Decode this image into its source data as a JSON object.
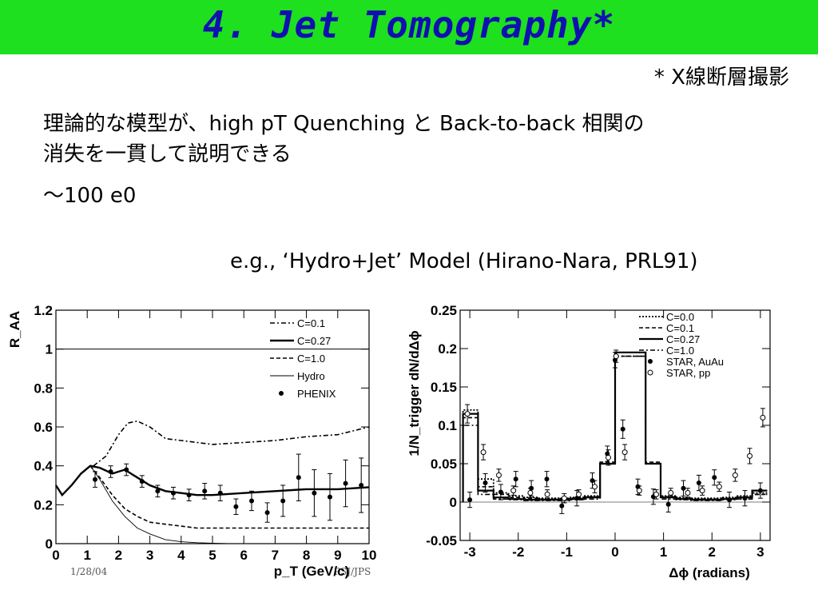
{
  "slide": {
    "title": "4. Jet Tomography*",
    "note": "* X線断層撮影",
    "line1": "理論的な模型が、high pT Quenching と Back-to-back 相関の",
    "line2": "消失を一貫して説明できる",
    "line3": "～100 e0",
    "example": "e.g., ‘Hydro+Jet’ Model (Hirano-Nara, PRL91)",
    "footer_left": "1/28/04",
    "footer_mid": "PSJ/JPS"
  },
  "chart_data": [
    {
      "type": "line",
      "ylabel": "R_AA",
      "xlabel": "p_T (GeV/c)",
      "xlim": [
        0,
        10
      ],
      "ylim": [
        0,
        1.2
      ],
      "xticks": [
        "0",
        "1",
        "2",
        "3",
        "4",
        "5",
        "6",
        "7",
        "8",
        "9",
        "10"
      ],
      "yticks": [
        "0",
        "0.2",
        "0.4",
        "0.6",
        "0.8",
        "1",
        "1.2"
      ],
      "legend_position": "top-right",
      "series": [
        {
          "name": "C=0.1",
          "style": "dashdot",
          "x": [
            1.2,
            1.6,
            2.0,
            2.3,
            2.6,
            3.0,
            3.5,
            4,
            5,
            6,
            7,
            8,
            9,
            10
          ],
          "y": [
            0.4,
            0.45,
            0.56,
            0.62,
            0.63,
            0.6,
            0.54,
            0.53,
            0.51,
            0.52,
            0.53,
            0.55,
            0.56,
            0.6
          ]
        },
        {
          "name": "C=0.27",
          "style": "solid-thick",
          "x": [
            0,
            0.2,
            0.5,
            0.8,
            1.1,
            1.4,
            1.8,
            2.2,
            2.6,
            3,
            3.5,
            4,
            4.5,
            5,
            6,
            7,
            8,
            9,
            10
          ],
          "y": [
            0.3,
            0.25,
            0.3,
            0.36,
            0.4,
            0.39,
            0.36,
            0.38,
            0.34,
            0.3,
            0.27,
            0.26,
            0.25,
            0.25,
            0.26,
            0.27,
            0.28,
            0.28,
            0.29
          ]
        },
        {
          "name": "C=1.0",
          "style": "dashed",
          "x": [
            1.1,
            1.4,
            1.8,
            2.2,
            2.6,
            3,
            3.5,
            4,
            4.5,
            5,
            6,
            7,
            8,
            9,
            10
          ],
          "y": [
            0.4,
            0.34,
            0.25,
            0.18,
            0.14,
            0.11,
            0.1,
            0.09,
            0.08,
            0.08,
            0.08,
            0.08,
            0.08,
            0.08,
            0.08
          ]
        },
        {
          "name": "Hydro",
          "style": "thin",
          "x": [
            1.1,
            1.4,
            1.8,
            2.2,
            2.6,
            3,
            3.5,
            4,
            4.5,
            5,
            5.5
          ],
          "y": [
            0.4,
            0.33,
            0.22,
            0.14,
            0.08,
            0.05,
            0.02,
            0.01,
            0.005,
            0.002,
            0.0
          ]
        },
        {
          "name": "PHENIX",
          "style": "points",
          "x": [
            1.25,
            1.75,
            2.25,
            2.75,
            3.25,
            3.75,
            4.25,
            4.75,
            5.25,
            5.75,
            6.25,
            6.75,
            7.25,
            7.75,
            8.25,
            8.75,
            9.25,
            9.75
          ],
          "y": [
            0.33,
            0.37,
            0.38,
            0.32,
            0.27,
            0.26,
            0.25,
            0.27,
            0.26,
            0.19,
            0.22,
            0.16,
            0.22,
            0.34,
            0.26,
            0.24,
            0.31,
            0.3
          ],
          "err": [
            0.04,
            0.03,
            0.03,
            0.03,
            0.03,
            0.03,
            0.03,
            0.04,
            0.04,
            0.04,
            0.05,
            0.05,
            0.08,
            0.12,
            0.12,
            0.12,
            0.12,
            0.14
          ]
        }
      ],
      "reference_line": {
        "y": 1
      }
    },
    {
      "type": "line",
      "ylabel": "1/N_trigger dN/dΔϕ",
      "xlabel": "Δϕ (radians)",
      "xlim": [
        -3.2,
        3.2
      ],
      "ylim": [
        -0.05,
        0.25
      ],
      "xticks": [
        "-3",
        "-2",
        "-1",
        "0",
        "1",
        "2",
        "3"
      ],
      "yticks": [
        "-0.05",
        "0",
        "0.05",
        "0.1",
        "0.15",
        "0.2",
        "0.25"
      ],
      "legend_position": "top-right",
      "bin_edges": [
        -3.14,
        -2.83,
        -2.51,
        -2.2,
        -1.88,
        -1.57,
        -1.26,
        -0.94,
        -0.63,
        -0.31,
        0,
        0.31,
        0.63,
        0.94,
        1.26,
        1.57,
        1.88,
        2.2,
        2.51,
        2.83,
        3.14
      ],
      "series": [
        {
          "name": "C=0.0",
          "style": "dotted",
          "values": [
            0.12,
            0.03,
            0.012,
            0.008,
            0.006,
            0.005,
            0.005,
            0.006,
            0.008,
            0.05,
            0.195,
            0.195,
            0.05,
            0.008,
            0.006,
            0.005,
            0.005,
            0.006,
            0.008,
            0.012
          ]
        },
        {
          "name": "C=0.1",
          "style": "dashed",
          "values": [
            0.11,
            0.02,
            0.01,
            0.006,
            0.005,
            0.004,
            0.004,
            0.005,
            0.007,
            0.052,
            0.19,
            0.19,
            0.052,
            0.007,
            0.005,
            0.004,
            0.004,
            0.005,
            0.006,
            0.01
          ]
        },
        {
          "name": "C=0.27",
          "style": "solid",
          "values": [
            0.115,
            0.015,
            0.006,
            0.004,
            0.003,
            0.003,
            0.003,
            0.004,
            0.006,
            0.05,
            0.195,
            0.195,
            0.05,
            0.006,
            0.004,
            0.003,
            0.003,
            0.004,
            0.006,
            0.015
          ]
        },
        {
          "name": "C=1.0",
          "style": "dashdot",
          "values": [
            0.1,
            0.01,
            0.004,
            0.003,
            0.002,
            0.002,
            0.002,
            0.003,
            0.004,
            0.05,
            0.19,
            0.19,
            0.05,
            0.004,
            0.003,
            0.002,
            0.002,
            0.003,
            0.004,
            0.01
          ]
        },
        {
          "name": "STAR, AuAu",
          "style": "filled",
          "x": [
            -3.0,
            -2.68,
            -2.36,
            -2.05,
            -1.73,
            -1.41,
            -1.1,
            -0.79,
            -0.47,
            -0.16,
            0.0,
            0.16,
            0.47,
            0.79,
            1.1,
            1.41,
            1.73,
            2.05,
            2.36,
            2.68,
            3.0
          ],
          "y": [
            0.003,
            0.025,
            0.013,
            0.03,
            0.018,
            0.03,
            -0.005,
            0.005,
            0.028,
            0.063,
            0.185,
            0.095,
            0.02,
            0.007,
            -0.003,
            0.018,
            0.025,
            0.032,
            0.003,
            0.005,
            0.015
          ],
          "err": [
            0.01,
            0.012,
            0.01,
            0.01,
            0.01,
            0.01,
            0.01,
            0.01,
            0.01,
            0.01,
            0.01,
            0.012,
            0.01,
            0.01,
            0.01,
            0.01,
            0.01,
            0.01,
            0.01,
            0.01,
            0.01
          ]
        },
        {
          "name": "STAR, pp",
          "style": "open",
          "x": [
            -3.05,
            -2.72,
            -2.4,
            -2.1,
            -1.75,
            -1.4,
            -1.05,
            -0.75,
            -0.42,
            -0.14,
            0.02,
            0.2,
            0.5,
            0.85,
            1.15,
            1.5,
            1.8,
            2.15,
            2.48,
            2.78,
            3.05
          ],
          "y": [
            0.115,
            0.065,
            0.035,
            0.015,
            0.012,
            0.01,
            0.005,
            0.01,
            0.02,
            0.058,
            0.19,
            0.065,
            0.015,
            0.01,
            0.012,
            0.012,
            0.015,
            0.02,
            0.035,
            0.06,
            0.11
          ],
          "err": [
            0.012,
            0.01,
            0.008,
            0.006,
            0.006,
            0.006,
            0.006,
            0.006,
            0.008,
            0.01,
            0.008,
            0.01,
            0.006,
            0.006,
            0.006,
            0.006,
            0.006,
            0.006,
            0.008,
            0.01,
            0.012
          ]
        }
      ]
    }
  ]
}
